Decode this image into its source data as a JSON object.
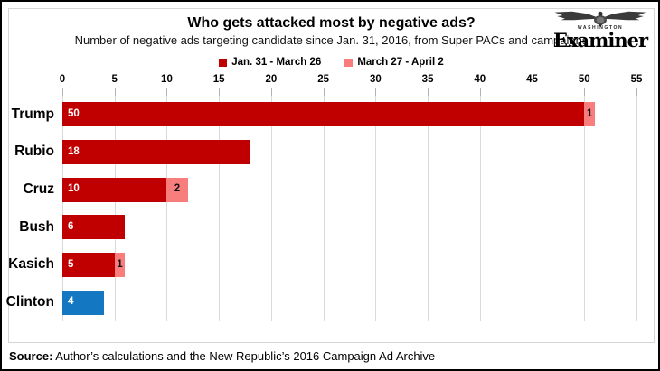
{
  "header": {
    "title": "Who gets attacked most by negative ads?",
    "subtitle": "Number of negative ads targeting candidate since Jan. 31, 2016, from Super PACs and campaigns",
    "logo": {
      "top_text": "WASHINGTON",
      "name": "Examiner"
    }
  },
  "legend": [
    {
      "label": "Jan. 31 - March 26",
      "color": "#C00000"
    },
    {
      "label": "March 27 - April 2",
      "color": "#F87E7E"
    }
  ],
  "chart_data": {
    "type": "bar",
    "orientation": "horizontal",
    "title": "Who gets attacked most by negative ads?",
    "subtitle": "Number of negative ads targeting candidate since Jan. 31, 2016, from Super PACs and campaigns",
    "categories": [
      "Trump",
      "Rubio",
      "Cruz",
      "Bush",
      "Kasich",
      "Clinton"
    ],
    "series": [
      {
        "name": "Jan. 31 - March 26",
        "color": "#C00000",
        "values": [
          50,
          18,
          10,
          6,
          5,
          4
        ]
      },
      {
        "name": "March 27 - April 2",
        "color": "#F87E7E",
        "values": [
          1,
          0,
          2,
          0,
          1,
          0
        ]
      }
    ],
    "bar_color_overrides": {
      "Clinton": "#1378C1"
    },
    "xlim": [
      0,
      55
    ],
    "x_ticks": [
      0,
      5,
      10,
      15,
      20,
      25,
      30,
      35,
      40,
      45,
      50,
      55
    ],
    "axis_position": "top",
    "grid": true,
    "gridline_color": "#d9d9d9",
    "legend_position": "top-center",
    "value_labels": true
  },
  "source": {
    "label": "Source:",
    "text": " Author’s calculations and the New Republic’s 2016 Campaign Ad Archive"
  }
}
